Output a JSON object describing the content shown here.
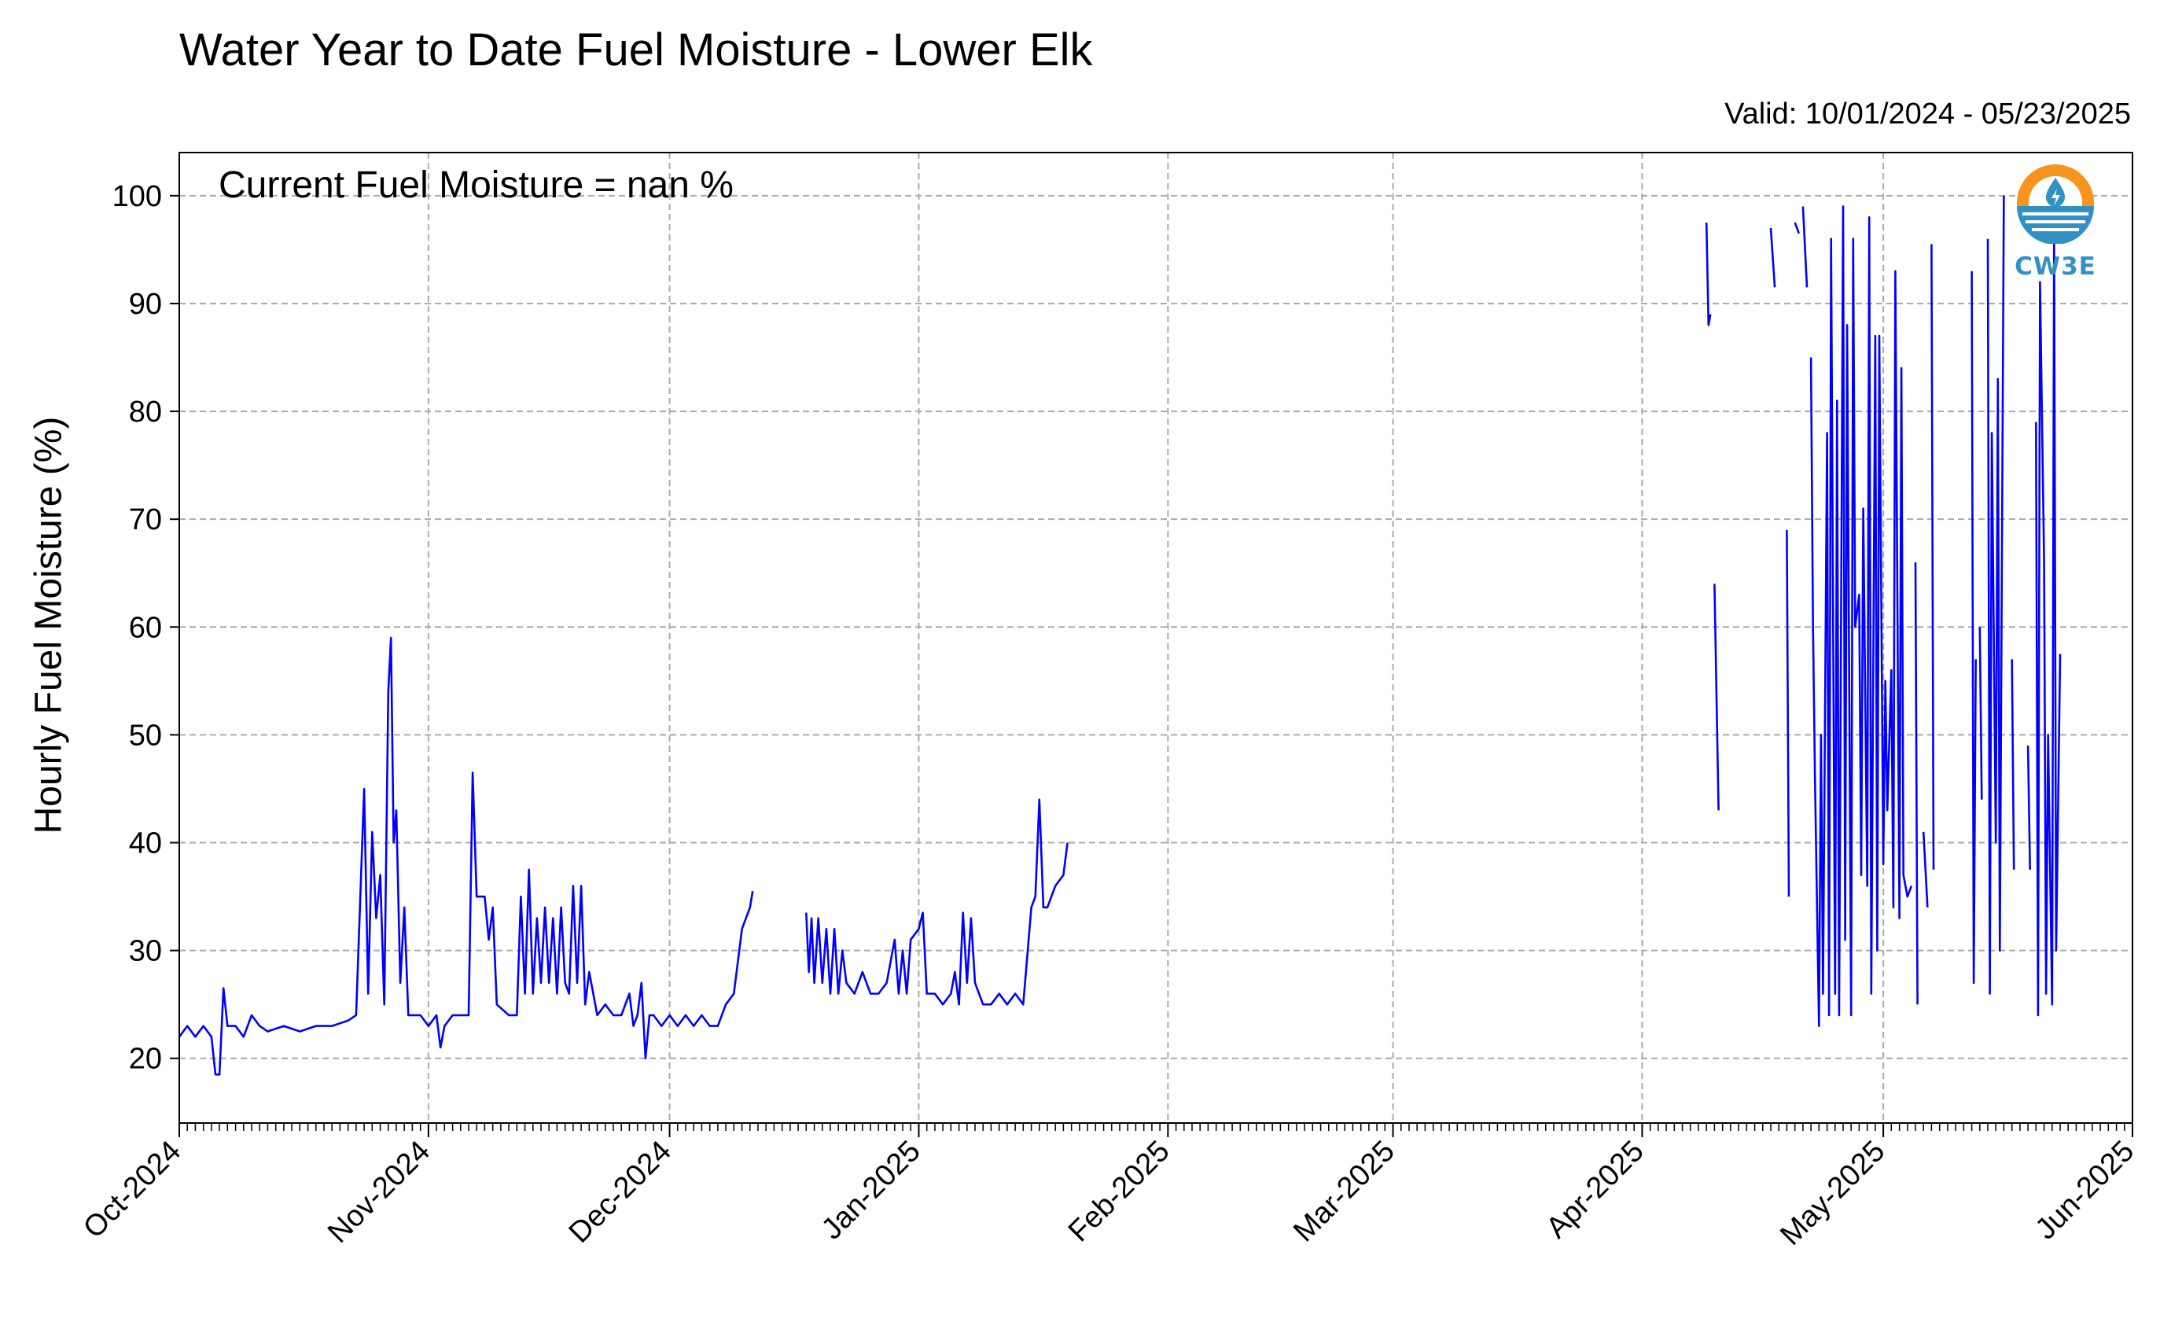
{
  "title": "Water Year to Date Fuel Moisture - Lower Elk",
  "subtitle": "Valid: 10/01/2024 - 05/23/2025",
  "annotation": "Current Fuel Moisture = nan %",
  "logo": {
    "name": "CW3E",
    "colors": {
      "orange": "#f7941d",
      "blue": "#3190c4"
    }
  },
  "line_color": "#0000ff",
  "chart_data": {
    "type": "line",
    "title": "Water Year to Date Fuel Moisture - Lower Elk",
    "subtitle": "Valid: 10/01/2024 - 05/23/2025",
    "xlabel": "",
    "ylabel": "Hourly Fuel Moisture (%)",
    "xlim": [
      "2024-10-01",
      "2025-06-01"
    ],
    "ylim": [
      14,
      104
    ],
    "x_ticks": [
      "Oct-2024",
      "Nov-2024",
      "Dec-2024",
      "Jan-2025",
      "Feb-2025",
      "Mar-2025",
      "Apr-2025",
      "May-2025",
      "Jun-2025"
    ],
    "x_tick_dates": [
      "2024-10-01",
      "2024-11-01",
      "2024-12-01",
      "2025-01-01",
      "2025-02-01",
      "2025-03-01",
      "2025-04-01",
      "2025-05-01",
      "2025-06-01"
    ],
    "y_ticks": [
      20,
      30,
      40,
      50,
      60,
      70,
      80,
      90,
      100
    ],
    "grid": true,
    "series": [
      {
        "segments": [
          [
            [
              "2024-10-01",
              22
            ],
            [
              "2024-10-02",
              23
            ],
            [
              "2024-10-03",
              22
            ],
            [
              "2024-10-04",
              23
            ],
            [
              "2024-10-05",
              22
            ],
            [
              "2024-10-05 12:00",
              18.5
            ],
            [
              "2024-10-06",
              18.5
            ],
            [
              "2024-10-06 12:00",
              26.5
            ],
            [
              "2024-10-07",
              23
            ],
            [
              "2024-10-08",
              23
            ],
            [
              "2024-10-09",
              22
            ],
            [
              "2024-10-10",
              24
            ],
            [
              "2024-10-11",
              23
            ],
            [
              "2024-10-12",
              22.5
            ],
            [
              "2024-10-14",
              23
            ],
            [
              "2024-10-16",
              22.5
            ],
            [
              "2024-10-18",
              23
            ],
            [
              "2024-10-20",
              23
            ],
            [
              "2024-10-22",
              23.5
            ],
            [
              "2024-10-23",
              24
            ],
            [
              "2024-10-24",
              45
            ],
            [
              "2024-10-24 12:00",
              26
            ],
            [
              "2024-10-25",
              41
            ],
            [
              "2024-10-25 12:00",
              33
            ],
            [
              "2024-10-26",
              37
            ],
            [
              "2024-10-26 12:00",
              25
            ],
            [
              "2024-10-27",
              54
            ],
            [
              "2024-10-27 08:00",
              59
            ],
            [
              "2024-10-27 16:00",
              40
            ],
            [
              "2024-10-28",
              43
            ],
            [
              "2024-10-28 12:00",
              27
            ],
            [
              "2024-10-29",
              34
            ],
            [
              "2024-10-29 12:00",
              24
            ],
            [
              "2024-10-31",
              24
            ],
            [
              "2024-11-01",
              23
            ],
            [
              "2024-11-02",
              24
            ],
            [
              "2024-11-02 12:00",
              21
            ],
            [
              "2024-11-03",
              23
            ],
            [
              "2024-11-04",
              24
            ],
            [
              "2024-11-05",
              24
            ],
            [
              "2024-11-06",
              24
            ],
            [
              "2024-11-06 12:00",
              46.5
            ],
            [
              "2024-11-07",
              35
            ],
            [
              "2024-11-08",
              35
            ],
            [
              "2024-11-08 12:00",
              31
            ],
            [
              "2024-11-09",
              34
            ],
            [
              "2024-11-09 12:00",
              25
            ],
            [
              "2024-11-11",
              24
            ],
            [
              "2024-11-12",
              24
            ],
            [
              "2024-11-12 12:00",
              35
            ],
            [
              "2024-11-13",
              26
            ],
            [
              "2024-11-13 12:00",
              37.5
            ],
            [
              "2024-11-14",
              26
            ],
            [
              "2024-11-14 12:00",
              33
            ],
            [
              "2024-11-15",
              27
            ],
            [
              "2024-11-15 12:00",
              34
            ],
            [
              "2024-11-16",
              27
            ],
            [
              "2024-11-16 12:00",
              33
            ],
            [
              "2024-11-17",
              26
            ],
            [
              "2024-11-17 12:00",
              34
            ],
            [
              "2024-11-18",
              27
            ],
            [
              "2024-11-18 12:00",
              26
            ],
            [
              "2024-11-19",
              36
            ],
            [
              "2024-11-19 12:00",
              27
            ],
            [
              "2024-11-20",
              36
            ],
            [
              "2024-11-20 12:00",
              25
            ],
            [
              "2024-11-21",
              28
            ],
            [
              "2024-11-22",
              24
            ],
            [
              "2024-11-23",
              25
            ],
            [
              "2024-11-24",
              24
            ],
            [
              "2024-11-25",
              24
            ],
            [
              "2024-11-26",
              26
            ],
            [
              "2024-11-26 12:00",
              23
            ],
            [
              "2024-11-27",
              24
            ],
            [
              "2024-11-27 12:00",
              27
            ],
            [
              "2024-11-28",
              20
            ],
            [
              "2024-11-28 12:00",
              24
            ],
            [
              "2024-11-29",
              24
            ],
            [
              "2024-11-30",
              23
            ],
            [
              "2024-12-01",
              24
            ],
            [
              "2024-12-02",
              23
            ],
            [
              "2024-12-03",
              24
            ],
            [
              "2024-12-04",
              23
            ],
            [
              "2024-12-05",
              24
            ],
            [
              "2024-12-06",
              23
            ],
            [
              "2024-12-07",
              23
            ],
            [
              "2024-12-08",
              25
            ],
            [
              "2024-12-09",
              26
            ],
            [
              "2024-12-10",
              32
            ],
            [
              "2024-12-11",
              34
            ],
            [
              "2024-12-11 08:00",
              35.5
            ]
          ],
          [
            [
              "2024-12-18",
              33.5
            ],
            [
              "2024-12-18 08:00",
              28
            ],
            [
              "2024-12-18 16:00",
              33
            ],
            [
              "2024-12-19",
              27
            ],
            [
              "2024-12-19 12:00",
              33
            ],
            [
              "2024-12-20",
              27
            ],
            [
              "2024-12-20 12:00",
              32
            ],
            [
              "2024-12-21",
              26
            ],
            [
              "2024-12-21 12:00",
              32
            ],
            [
              "2024-12-22",
              26
            ],
            [
              "2024-12-22 12:00",
              30
            ],
            [
              "2024-12-23",
              27
            ],
            [
              "2024-12-24",
              26
            ],
            [
              "2024-12-25",
              28
            ],
            [
              "2024-12-26",
              26
            ],
            [
              "2024-12-27",
              26
            ],
            [
              "2024-12-28",
              27
            ],
            [
              "2024-12-29",
              31
            ],
            [
              "2024-12-29 12:00",
              26
            ],
            [
              "2024-12-30",
              30
            ],
            [
              "2024-12-30 12:00",
              26
            ],
            [
              "2024-12-31",
              31
            ],
            [
              "2025-01-01",
              32
            ],
            [
              "2025-01-01 12:00",
              33.5
            ],
            [
              "2025-01-02",
              26
            ],
            [
              "2025-01-03",
              26
            ],
            [
              "2025-01-04",
              25
            ],
            [
              "2025-01-05",
              26
            ],
            [
              "2025-01-05 12:00",
              28
            ],
            [
              "2025-01-06",
              25
            ],
            [
              "2025-01-06 12:00",
              33.5
            ],
            [
              "2025-01-07",
              27
            ],
            [
              "2025-01-07 12:00",
              33
            ],
            [
              "2025-01-08",
              27
            ],
            [
              "2025-01-08 12:00",
              26
            ],
            [
              "2025-01-09",
              25
            ],
            [
              "2025-01-10",
              25
            ],
            [
              "2025-01-11",
              26
            ],
            [
              "2025-01-12",
              25
            ],
            [
              "2025-01-13",
              26
            ],
            [
              "2025-01-14",
              25
            ],
            [
              "2025-01-15",
              34
            ],
            [
              "2025-01-15 12:00",
              35
            ],
            [
              "2025-01-16",
              44
            ],
            [
              "2025-01-16 12:00",
              34
            ],
            [
              "2025-01-17",
              34
            ],
            [
              "2025-01-18",
              36
            ],
            [
              "2025-01-19",
              37
            ],
            [
              "2025-01-19 12:00",
              40
            ]
          ],
          [
            [
              "2025-04-09",
              97.5
            ],
            [
              "2025-04-09 06:00",
              88
            ],
            [
              "2025-04-09 12:00",
              89
            ]
          ],
          [
            [
              "2025-04-10",
              64
            ],
            [
              "2025-04-10 12:00",
              43
            ]
          ],
          [
            [
              "2025-04-17",
              97
            ],
            [
              "2025-04-17 12:00",
              91.5
            ]
          ],
          [
            [
              "2025-04-19",
              69
            ],
            [
              "2025-04-19 06:00",
              35
            ]
          ],
          [
            [
              "2025-04-20",
              97.5
            ],
            [
              "2025-04-20 12:00",
              96.5
            ]
          ],
          [
            [
              "2025-04-21",
              99
            ],
            [
              "2025-04-21 12:00",
              91.5
            ]
          ],
          [
            [
              "2025-04-22",
              85
            ],
            [
              "2025-04-22 06:00",
              60
            ],
            [
              "2025-04-22 12:00",
              46
            ],
            [
              "2025-04-23",
              23
            ],
            [
              "2025-04-23 06:00",
              50
            ],
            [
              "2025-04-23 12:00",
              26
            ],
            [
              "2025-04-24",
              78
            ],
            [
              "2025-04-24 06:00",
              24
            ],
            [
              "2025-04-24 12:00",
              96
            ],
            [
              "2025-04-25",
              26
            ],
            [
              "2025-04-25 06:00",
              81
            ],
            [
              "2025-04-25 12:00",
              24
            ],
            [
              "2025-04-26",
              99
            ],
            [
              "2025-04-26 06:00",
              31
            ],
            [
              "2025-04-26 12:00",
              88
            ],
            [
              "2025-04-27",
              24
            ],
            [
              "2025-04-27 06:00",
              96
            ],
            [
              "2025-04-27 12:00",
              60
            ],
            [
              "2025-04-28",
              63
            ],
            [
              "2025-04-28 06:00",
              37
            ],
            [
              "2025-04-28 12:00",
              71
            ],
            [
              "2025-04-29",
              36
            ],
            [
              "2025-04-29 06:00",
              98
            ],
            [
              "2025-04-29 12:00",
              26
            ],
            [
              "2025-04-30",
              87
            ],
            [
              "2025-04-30 06:00",
              30
            ],
            [
              "2025-04-30 12:00",
              87
            ],
            [
              "2025-05-01",
              38
            ],
            [
              "2025-05-01 06:00",
              55
            ],
            [
              "2025-05-01 12:00",
              43
            ],
            [
              "2025-05-02",
              56
            ],
            [
              "2025-05-02 06:00",
              34
            ],
            [
              "2025-05-02 12:00",
              93
            ],
            [
              "2025-05-03",
              33
            ],
            [
              "2025-05-03 06:00",
              84
            ],
            [
              "2025-05-03 12:00",
              37
            ],
            [
              "2025-05-04",
              35
            ],
            [
              "2025-05-04 12:00",
              36
            ]
          ],
          [
            [
              "2025-05-05",
              66
            ],
            [
              "2025-05-05 06:00",
              25
            ]
          ],
          [
            [
              "2025-05-06",
              41
            ],
            [
              "2025-05-06 12:00",
              34
            ]
          ],
          [
            [
              "2025-05-07",
              95.5
            ],
            [
              "2025-05-07 06:00",
              37.5
            ]
          ],
          [
            [
              "2025-05-12",
              93
            ],
            [
              "2025-05-12 06:00",
              27
            ],
            [
              "2025-05-12 12:00",
              57
            ]
          ],
          [
            [
              "2025-05-13",
              60
            ],
            [
              "2025-05-13 06:00",
              44
            ]
          ],
          [
            [
              "2025-05-14",
              96
            ],
            [
              "2025-05-14 06:00",
              26
            ],
            [
              "2025-05-14 12:00",
              78
            ],
            [
              "2025-05-15",
              40
            ],
            [
              "2025-05-15 06:00",
              83
            ],
            [
              "2025-05-15 12:00",
              30
            ],
            [
              "2025-05-16",
              100
            ]
          ],
          [
            [
              "2025-05-17",
              57
            ],
            [
              "2025-05-17 06:00",
              37.5
            ]
          ],
          [
            [
              "2025-05-19",
              49
            ],
            [
              "2025-05-19 06:00",
              37.5
            ]
          ],
          [
            [
              "2025-05-20",
              79
            ],
            [
              "2025-05-20 06:00",
              24
            ],
            [
              "2025-05-20 12:00",
              92
            ],
            [
              "2025-05-21",
              66
            ],
            [
              "2025-05-21 06:00",
              26
            ],
            [
              "2025-05-21 12:00",
              50
            ],
            [
              "2025-05-22",
              25
            ],
            [
              "2025-05-22 06:00",
              97
            ],
            [
              "2025-05-22 12:00",
              30
            ],
            [
              "2025-05-23",
              57.5
            ]
          ]
        ]
      }
    ]
  }
}
